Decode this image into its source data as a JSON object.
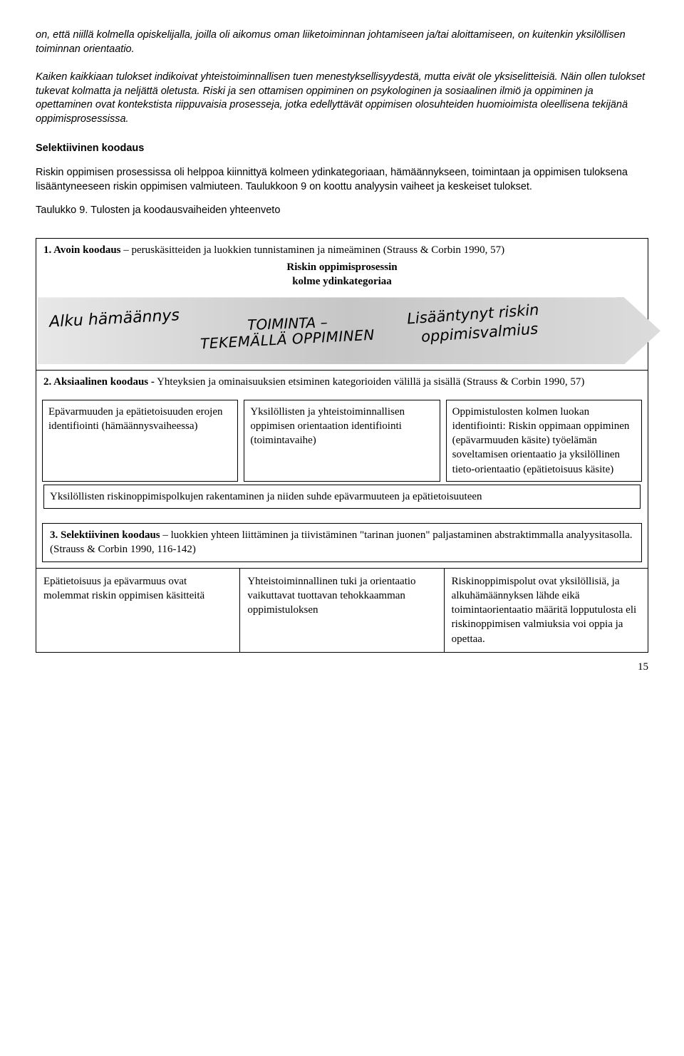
{
  "intro": {
    "p1": "on, että niillä kolmella opiskelijalla, joilla oli aikomus oman liiketoiminnan johtamiseen ja/tai aloittamiseen, on kuitenkin yksilöllisen toiminnan orientaatio.",
    "p2": "Kaiken kaikkiaan tulokset indikoivat yhteistoiminnallisen tuen menestyksellisyydestä, mutta eivät ole yksiselitteisiä. Näin ollen tulokset tukevat kolmatta ja neljättä oletusta. Riski ja sen ottamisen oppiminen on psykologinen ja sosiaalinen ilmiö ja oppiminen ja opettaminen ovat kontekstista riippuvaisia prosesseja, jotka edellyttävät oppimisen olosuhteiden huomioimista oleellisena tekijänä oppimisprosessissa."
  },
  "selective": {
    "heading": "Selektiivinen koodaus",
    "p1": "Riskin oppimisen prosessissa oli helppoa kiinnittyä kolmeen ydinkategoriaan, hämäännykseen, toimintaan ja oppimisen tuloksena lisääntyneeseen riskin oppimisen valmiuteen. Taulukkoon 9 on koottu analyysin vaiheet ja keskeiset tulokset.",
    "p2": "Taulukko 9. Tulosten ja koodausvaiheiden yhteenveto"
  },
  "table": {
    "section1": {
      "title_strong": "1. Avoin koodaus",
      "title_rest": " – peruskäsitteiden ja luokkien tunnistaminen ja nimeäminen (Strauss & Corbin 1990, 57)",
      "center1": "Riskin oppimisprosessin",
      "center2": "kolme ydinkategoriaa",
      "arrow": {
        "t1": "Alku hämäännys",
        "t2a": "TOIMINTA –",
        "t2b": "TEKEMÄLLÄ OPPIMINEN",
        "t3": "Lisääntynyt riskin",
        "t4": "oppimisvalmius"
      }
    },
    "section2": {
      "title_strong": "2. Aksiaalinen koodaus -",
      "title_rest": " Yhteyksien ja ominaisuuksien etsiminen kategorioiden välillä ja sisällä (Strauss & Corbin 1990, 57)",
      "cols": [
        "Epävarmuuden ja epätietoisuuden erojen identifiointi (hämäännysvaiheessa)",
        "Yksilöllisten ja yhteistoiminnallisen oppimisen orientaation identifiointi (toimintavaihe)",
        "Oppimistulosten kolmen luokan identifiointi: Riskin oppimaan oppiminen (epävarmuuden käsite) työelämän soveltamisen orientaatio ja yksilöllinen tieto-orientaatio (epätietoisuus käsite)"
      ],
      "full": "Yksilöllisten riskinoppimispolkujen rakentaminen ja niiden suhde epävarmuuteen ja epätietoisuuteen"
    },
    "section3": {
      "title_strong": "3. Selektiivinen koodaus",
      "title_rest": " – luokkien yhteen liittäminen ja tiivistäminen \"tarinan juonen\" paljastaminen abstraktimmalla analyysitasolla. (Strauss & Corbin 1990, 116-142)",
      "cols": [
        "Epätietoisuus ja epävarmuus ovat molemmat riskin oppimisen käsitteitä",
        "Yhteistoiminnallinen tuki ja orientaatio vaikuttavat tuottavan tehokkaamman oppimistuloksen",
        "Riskinoppimispolut ovat yksilöllisiä, ja alkuhämäännyksen lähde eikä toimintaorientaatio määritä lopputulosta eli riskinoppimisen valmiuksia voi oppia ja opettaa."
      ]
    }
  },
  "pagenum": "15"
}
